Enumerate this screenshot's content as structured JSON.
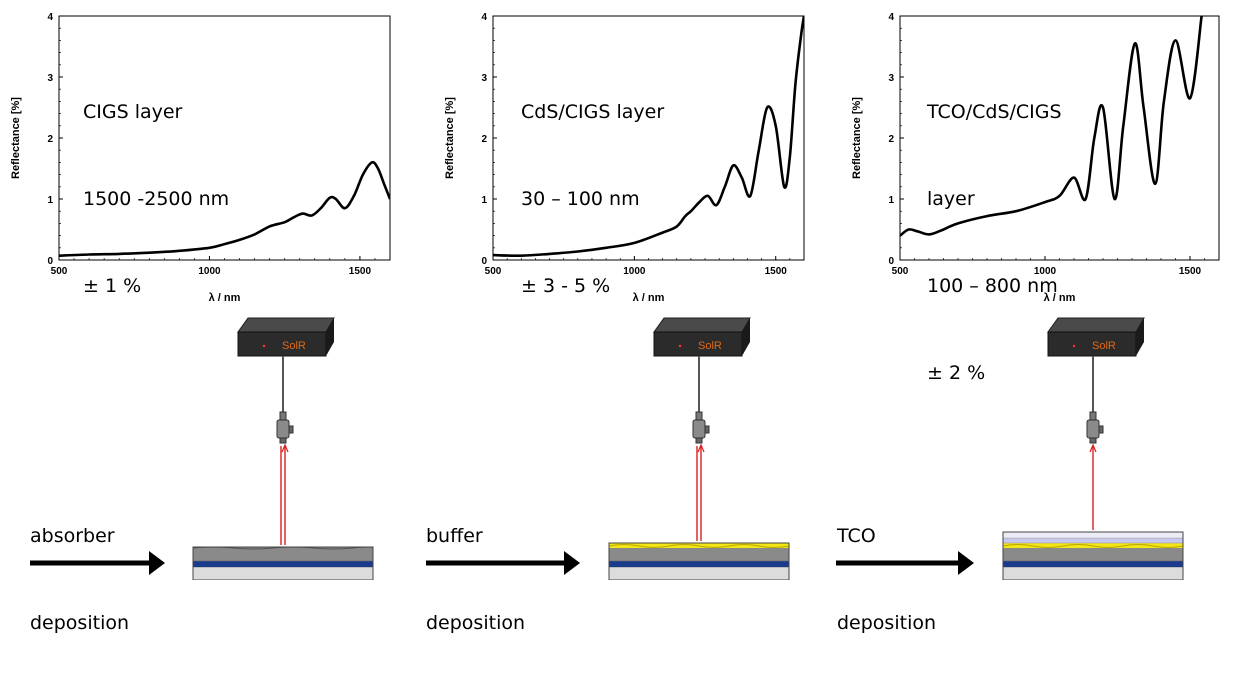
{
  "chart_data": [
    {
      "type": "line",
      "xlabel": "λ / nm",
      "ylabel": "Reflectance [%]",
      "xlim": [
        500,
        1600
      ],
      "ylim": [
        0,
        4
      ],
      "xticks": [
        "500",
        "1000",
        "1500"
      ],
      "yticks": [
        "0",
        "1",
        "2",
        "3",
        "4"
      ],
      "annotation": [
        "CIGS layer",
        "1500 -2500 nm",
        "± 1 %"
      ],
      "x": [
        500,
        600,
        700,
        800,
        900,
        1000,
        1050,
        1100,
        1150,
        1200,
        1250,
        1280,
        1310,
        1340,
        1370,
        1400,
        1420,
        1450,
        1480,
        1510,
        1540,
        1560,
        1580,
        1600
      ],
      "y": [
        0.07,
        0.09,
        0.1,
        0.12,
        0.15,
        0.2,
        0.26,
        0.33,
        0.42,
        0.55,
        0.62,
        0.7,
        0.76,
        0.73,
        0.85,
        1.02,
        1.0,
        0.85,
        1.05,
        1.4,
        1.6,
        1.5,
        1.25,
        1.0
      ]
    },
    {
      "type": "line",
      "xlabel": "λ / nm",
      "ylabel": "Reflectance [%]",
      "xlim": [
        500,
        1600
      ],
      "ylim": [
        0,
        4
      ],
      "xticks": [
        "500",
        "1000",
        "1500"
      ],
      "yticks": [
        "0",
        "1",
        "2",
        "3",
        "4"
      ],
      "annotation": [
        "CdS/CIGS layer",
        "30 – 100 nm",
        "± 3 - 5 %"
      ],
      "x": [
        500,
        600,
        700,
        800,
        900,
        1000,
        1100,
        1150,
        1180,
        1200,
        1230,
        1260,
        1290,
        1320,
        1350,
        1380,
        1410,
        1440,
        1470,
        1500,
        1530,
        1550,
        1570,
        1590,
        1600
      ],
      "y": [
        0.08,
        0.07,
        0.1,
        0.14,
        0.2,
        0.28,
        0.45,
        0.55,
        0.72,
        0.8,
        0.95,
        1.05,
        0.9,
        1.2,
        1.55,
        1.35,
        1.05,
        1.8,
        2.5,
        2.2,
        1.2,
        1.7,
        2.9,
        3.7,
        4.0
      ]
    },
    {
      "type": "line",
      "xlabel": "λ / nm",
      "ylabel": "Reflectance [%]",
      "xlim": [
        500,
        1600
      ],
      "ylim": [
        0,
        4
      ],
      "xticks": [
        "500",
        "1000",
        "1500"
      ],
      "yticks": [
        "0",
        "1",
        "2",
        "3",
        "4"
      ],
      "annotation": [
        "TCO/CdS/CIGS",
        "layer",
        "100 – 800 nm",
        "± 2 %"
      ],
      "x": [
        500,
        530,
        560,
        600,
        640,
        700,
        800,
        900,
        1000,
        1050,
        1100,
        1140,
        1170,
        1200,
        1240,
        1270,
        1310,
        1340,
        1380,
        1410,
        1450,
        1500,
        1540
      ],
      "y": [
        0.4,
        0.5,
        0.47,
        0.42,
        0.48,
        0.6,
        0.72,
        0.8,
        0.95,
        1.05,
        1.35,
        1.0,
        2.0,
        2.5,
        1.0,
        2.2,
        3.55,
        2.5,
        1.25,
        2.6,
        3.6,
        2.65,
        4.0
      ]
    }
  ],
  "stages": [
    {
      "label": [
        "absorber",
        "deposition"
      ],
      "layers": "absorber"
    },
    {
      "label": [
        "buffer",
        "deposition"
      ],
      "layers": "buffer"
    },
    {
      "label": [
        "TCO",
        "deposition"
      ],
      "layers": "tco"
    }
  ],
  "device": {
    "brand": "SolR"
  },
  "colors": {
    "curve": "#000000",
    "beam": "#d81e1e",
    "glass": "#dcdcdc",
    "molybdenum": "#1a3b8c",
    "absorber": "#8a8a8a",
    "buffer": "#f5e616",
    "tco": "#c8c8ee",
    "device_body": "#2b2b2b",
    "device_text": "#e06a18"
  }
}
